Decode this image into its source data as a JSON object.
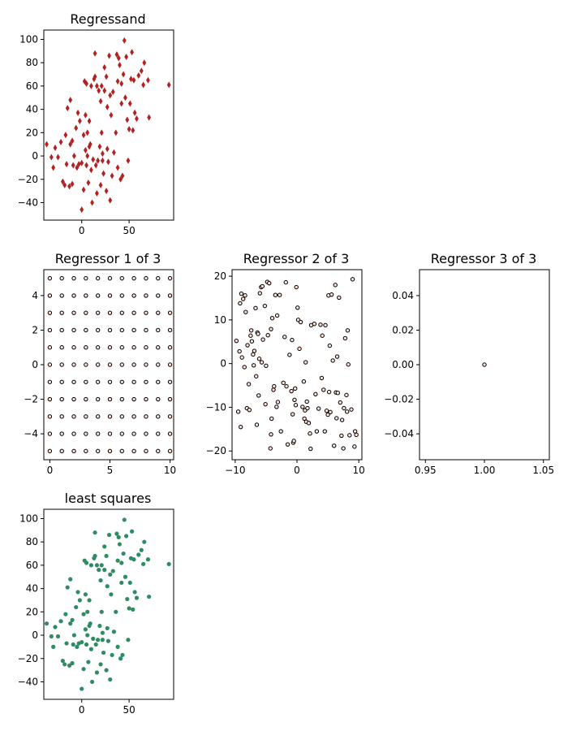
{
  "chart_data": [
    {
      "id": "regressand",
      "type": "scatter",
      "title": "Regressand",
      "marker": "diamond",
      "color": "#b22222",
      "xlim": [
        -40,
        97
      ],
      "ylim": [
        -55,
        108
      ],
      "xticks": [
        0,
        50
      ],
      "yticks": [
        -40,
        -20,
        0,
        20,
        40,
        60,
        80,
        100
      ],
      "points": [
        [
          -37,
          10
        ],
        [
          -32,
          -1
        ],
        [
          -30,
          -10
        ],
        [
          -28,
          7
        ],
        [
          -25,
          -1
        ],
        [
          -22,
          12
        ],
        [
          -20,
          -22
        ],
        [
          -18,
          -25
        ],
        [
          -17,
          18
        ],
        [
          -16,
          -7
        ],
        [
          -15,
          41
        ],
        [
          -13,
          -26
        ],
        [
          -12,
          48
        ],
        [
          -12,
          10
        ],
        [
          -10,
          -24
        ],
        [
          -10,
          13
        ],
        [
          -9,
          -8
        ],
        [
          -8,
          0
        ],
        [
          -6,
          24
        ],
        [
          -5,
          -10
        ],
        [
          -4,
          37
        ],
        [
          -3,
          -7
        ],
        [
          -2,
          30
        ],
        [
          0,
          -46
        ],
        [
          0,
          -6
        ],
        [
          2,
          -29
        ],
        [
          2,
          18
        ],
        [
          3,
          64
        ],
        [
          4,
          5
        ],
        [
          4,
          35
        ],
        [
          5,
          62
        ],
        [
          5,
          -8
        ],
        [
          6,
          20
        ],
        [
          6,
          0
        ],
        [
          7,
          -23
        ],
        [
          8,
          30
        ],
        [
          8,
          8
        ],
        [
          9,
          10
        ],
        [
          10,
          -12
        ],
        [
          10,
          60
        ],
        [
          11,
          -40
        ],
        [
          12,
          -3
        ],
        [
          13,
          66
        ],
        [
          14,
          88
        ],
        [
          14,
          68
        ],
        [
          15,
          -8
        ],
        [
          16,
          -32
        ],
        [
          16,
          60
        ],
        [
          17,
          -4
        ],
        [
          18,
          56
        ],
        [
          19,
          8
        ],
        [
          20,
          47
        ],
        [
          20,
          -25
        ],
        [
          21,
          20
        ],
        [
          21,
          60
        ],
        [
          22,
          2
        ],
        [
          22,
          -4
        ],
        [
          23,
          -15
        ],
        [
          24,
          56
        ],
        [
          24,
          76
        ],
        [
          26,
          -30
        ],
        [
          26,
          68
        ],
        [
          27,
          42
        ],
        [
          27,
          6
        ],
        [
          28,
          -5
        ],
        [
          29,
          86
        ],
        [
          30,
          52
        ],
        [
          30,
          -38
        ],
        [
          31,
          35
        ],
        [
          32,
          -17
        ],
        [
          33,
          55
        ],
        [
          34,
          3
        ],
        [
          36,
          20
        ],
        [
          37,
          87
        ],
        [
          38,
          -10
        ],
        [
          38,
          64
        ],
        [
          39,
          84
        ],
        [
          40,
          78
        ],
        [
          41,
          -20
        ],
        [
          42,
          45
        ],
        [
          42,
          62
        ],
        [
          43,
          -17
        ],
        [
          44,
          70
        ],
        [
          45,
          99
        ],
        [
          46,
          50
        ],
        [
          47,
          85
        ],
        [
          48,
          31
        ],
        [
          49,
          -4
        ],
        [
          50,
          23
        ],
        [
          51,
          45
        ],
        [
          52,
          66
        ],
        [
          53,
          89
        ],
        [
          54,
          22
        ],
        [
          55,
          65
        ],
        [
          56,
          37
        ],
        [
          58,
          32
        ],
        [
          60,
          69
        ],
        [
          63,
          73
        ],
        [
          65,
          61
        ],
        [
          66,
          80
        ],
        [
          70,
          65
        ],
        [
          71,
          33
        ],
        [
          92,
          61
        ]
      ]
    },
    {
      "id": "regressor1",
      "type": "scatter",
      "title": "Regressor 1 of 3",
      "marker": "circle",
      "color": "#fbe0d4",
      "edge_color": "#000000",
      "xlim": [
        -0.5,
        10.3
      ],
      "ylim": [
        -5.5,
        5.5
      ],
      "xticks": [
        0,
        5,
        10
      ],
      "yticks": [
        -4,
        -2,
        0,
        2,
        4
      ],
      "grid_x": [
        0,
        1,
        2,
        3,
        4,
        5,
        6,
        7,
        8,
        9,
        10
      ],
      "grid_y": [
        -5,
        -4,
        -3,
        -2,
        -1,
        0,
        1,
        2,
        3,
        4,
        5
      ]
    },
    {
      "id": "regressor2",
      "type": "scatter",
      "title": "Regressor 2 of 3",
      "marker": "circle",
      "color": "#fbe0d4",
      "edge_color": "#000000",
      "xlim": [
        -10.5,
        10.5
      ],
      "ylim": [
        -22,
        21.5
      ],
      "xticks": [
        -10,
        0,
        10
      ],
      "yticks": [
        -20,
        -10,
        0,
        10,
        20
      ],
      "points": [
        [
          -9.8,
          5.2
        ],
        [
          -9.5,
          -11
        ],
        [
          -9.3,
          2.8
        ],
        [
          -9.2,
          13.8
        ],
        [
          -9.1,
          -14.5
        ],
        [
          -9,
          16
        ],
        [
          -8.9,
          1.4
        ],
        [
          -8.7,
          14.8
        ],
        [
          -8.5,
          -0.8
        ],
        [
          -8.4,
          15.6
        ],
        [
          -8.3,
          11.8
        ],
        [
          -8.1,
          -10.2
        ],
        [
          -8,
          4.2
        ],
        [
          -7.8,
          -4.7
        ],
        [
          -7.7,
          -10.6
        ],
        [
          -7.5,
          6.4
        ],
        [
          -7.4,
          7.6
        ],
        [
          -7.3,
          5.1
        ],
        [
          -7.1,
          2.1
        ],
        [
          -7,
          -0.4
        ],
        [
          -6.9,
          2.9
        ],
        [
          -6.7,
          12.7
        ],
        [
          -6.6,
          -2.9
        ],
        [
          -6.5,
          -14
        ],
        [
          -6.4,
          7.1
        ],
        [
          -6.3,
          6.8
        ],
        [
          -6.2,
          -7.3
        ],
        [
          -6.1,
          1.1
        ],
        [
          -6,
          16.1
        ],
        [
          -5.8,
          17.5
        ],
        [
          -5.7,
          0.3
        ],
        [
          -5.6,
          17.7
        ],
        [
          -5.5,
          5.5
        ],
        [
          -5.2,
          13.2
        ],
        [
          -5.1,
          -9.3
        ],
        [
          -5,
          -0.5
        ],
        [
          -4.8,
          18.7
        ],
        [
          -4.7,
          6.5
        ],
        [
          -4.5,
          18.4
        ],
        [
          -4.3,
          -19.4
        ],
        [
          -4.2,
          -16.2
        ],
        [
          -4.2,
          7.9
        ],
        [
          -4.1,
          -12.6
        ],
        [
          -4,
          10.4
        ],
        [
          -3.8,
          -6
        ],
        [
          -3.7,
          -5.2
        ],
        [
          -3.5,
          15.7
        ],
        [
          -3.3,
          -9.9
        ],
        [
          -3.2,
          11
        ],
        [
          -3.1,
          -8.8
        ],
        [
          -2.8,
          15.7
        ],
        [
          -2.6,
          -15.5
        ],
        [
          -2.2,
          -4.4
        ],
        [
          -2,
          6.1
        ],
        [
          -1.8,
          18.6
        ],
        [
          -1.7,
          -5.2
        ],
        [
          -1.5,
          -18.5
        ],
        [
          -1.2,
          2
        ],
        [
          -0.9,
          -6.3
        ],
        [
          -0.8,
          5.4
        ],
        [
          -0.7,
          -11.6
        ],
        [
          -0.6,
          -18.1
        ],
        [
          -0.5,
          -17.7
        ],
        [
          -0.4,
          -8.3
        ],
        [
          -0.3,
          -5.7
        ],
        [
          -0.2,
          -9.5
        ],
        [
          -0.1,
          17.5
        ],
        [
          0.1,
          12.8
        ],
        [
          0.2,
          10
        ],
        [
          0.4,
          3.4
        ],
        [
          0.6,
          9.5
        ],
        [
          0.9,
          -9.9
        ],
        [
          1.1,
          -4.1
        ],
        [
          1.2,
          -12.6
        ],
        [
          1.3,
          -10.7
        ],
        [
          1.4,
          0.3
        ],
        [
          1.5,
          -13.3
        ],
        [
          1.6,
          -8.7
        ],
        [
          1.7,
          -10.2
        ],
        [
          1.9,
          -13.6
        ],
        [
          2.1,
          -16
        ],
        [
          2.2,
          -19.5
        ],
        [
          2.3,
          8.8
        ],
        [
          2.8,
          9.1
        ],
        [
          3,
          -7
        ],
        [
          3.2,
          -15.5
        ],
        [
          3.5,
          -10.3
        ],
        [
          3.8,
          8.9
        ],
        [
          4,
          -3.3
        ],
        [
          4.1,
          6.4
        ],
        [
          4.3,
          -6
        ],
        [
          4.5,
          -15.5
        ],
        [
          4.6,
          8.8
        ],
        [
          4.8,
          -10.8
        ],
        [
          5,
          -11.7
        ],
        [
          5.1,
          15.6
        ],
        [
          5.2,
          -6.5
        ],
        [
          5.3,
          4.1
        ],
        [
          5.4,
          -11.1
        ],
        [
          5.6,
          15.8
        ],
        [
          5.8,
          0.7
        ],
        [
          6,
          -18.8
        ],
        [
          6.2,
          18
        ],
        [
          6.3,
          -6.6
        ],
        [
          6.4,
          -12.5
        ],
        [
          6.5,
          1.6
        ],
        [
          6.6,
          -6.7
        ],
        [
          6.8,
          15.1
        ],
        [
          7,
          -8.9
        ],
        [
          7.2,
          -16.5
        ],
        [
          7.3,
          -12.9
        ],
        [
          7.5,
          -19.4
        ],
        [
          7.6,
          -10.2
        ],
        [
          7.8,
          5.8
        ],
        [
          8,
          -7.2
        ],
        [
          8.1,
          -11
        ],
        [
          8.2,
          7.6
        ],
        [
          8.3,
          -0.2
        ],
        [
          8.5,
          -16.4
        ],
        [
          8.8,
          -10.5
        ],
        [
          9,
          19.3
        ],
        [
          9.3,
          -19
        ],
        [
          9.4,
          -15.5
        ],
        [
          9.6,
          -16.3
        ]
      ]
    },
    {
      "id": "regressor3",
      "type": "scatter",
      "title": "Regressor 3 of 3",
      "marker": "circle",
      "color": "#fbe0d4",
      "edge_color": "#000000",
      "xlim": [
        0.945,
        1.055
      ],
      "ylim": [
        -0.055,
        0.055
      ],
      "xticks": [
        0.95,
        1.0,
        1.05
      ],
      "xtick_labels": [
        "0.95",
        "1.00",
        "1.05"
      ],
      "yticks": [
        -0.04,
        -0.02,
        0.0,
        0.02,
        0.04
      ],
      "ytick_labels": [
        "−0.04",
        "−0.02",
        "0.00",
        "0.02",
        "0.04"
      ],
      "points": [
        [
          1.0,
          0.0
        ]
      ]
    },
    {
      "id": "least-squares",
      "type": "scatter",
      "title": "least squares",
      "marker": "circle",
      "color": "#2e8b62",
      "xlim": [
        -40,
        97
      ],
      "ylim": [
        -55,
        108
      ],
      "xticks": [
        0,
        50
      ],
      "yticks": [
        -40,
        -20,
        0,
        20,
        40,
        60,
        80,
        100
      ],
      "same_points_as": "regressand"
    }
  ]
}
